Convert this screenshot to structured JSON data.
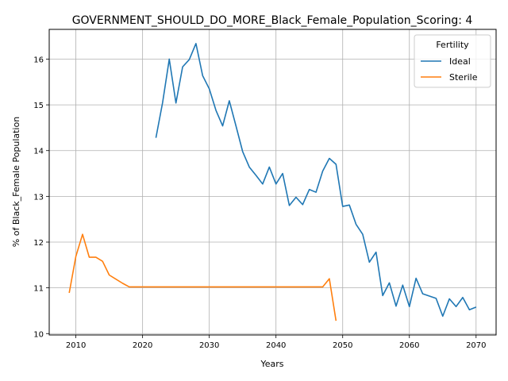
{
  "chart_data": {
    "type": "line",
    "title": "GOVERNMENT_SHOULD_DO_MORE_Black_Female_Population_Scoring: 4",
    "xlabel": "Years",
    "ylabel": "% of Black_Female Population",
    "xlim": [
      2006,
      2073
    ],
    "ylim": [
      9.97,
      16.65
    ],
    "xticks": [
      2010,
      2020,
      2030,
      2040,
      2050,
      2060,
      2070
    ],
    "yticks": [
      10,
      11,
      12,
      13,
      14,
      15,
      16
    ],
    "grid": true,
    "legend": {
      "title": "Fertility",
      "placement": "top-right"
    },
    "series": [
      {
        "name": "Ideal",
        "color": "#1f77b4",
        "x": [
          2022,
          2023,
          2024,
          2025,
          2026,
          2027,
          2028,
          2029,
          2030,
          2031,
          2032,
          2033,
          2034,
          2035,
          2036,
          2037,
          2038,
          2039,
          2040,
          2041,
          2042,
          2043,
          2044,
          2045,
          2046,
          2047,
          2048,
          2049,
          2050,
          2051,
          2052,
          2053,
          2054,
          2055,
          2056,
          2057,
          2058,
          2059,
          2060,
          2061,
          2062,
          2063,
          2064,
          2065,
          2066,
          2067,
          2068,
          2069,
          2070
        ],
        "values": [
          14.28,
          15.05,
          16.0,
          15.04,
          15.83,
          15.99,
          16.34,
          15.64,
          15.35,
          14.88,
          14.54,
          15.09,
          14.54,
          13.98,
          13.64,
          13.46,
          13.27,
          13.64,
          13.27,
          13.5,
          12.8,
          12.98,
          12.82,
          13.15,
          13.09,
          13.55,
          13.83,
          13.7,
          12.78,
          12.81,
          12.39,
          12.17,
          11.56,
          11.78,
          10.83,
          11.11,
          10.6,
          11.06,
          10.59,
          11.21,
          10.87,
          10.82,
          10.77,
          10.38,
          10.76,
          10.59,
          10.79,
          10.52,
          10.58
        ]
      },
      {
        "name": "Sterile",
        "color": "#ff7f0e",
        "x": [
          2009,
          2010,
          2011,
          2012,
          2013,
          2014,
          2015,
          2016,
          2017,
          2018,
          2019,
          2020,
          2021,
          2022,
          2023,
          2024,
          2025,
          2026,
          2027,
          2028,
          2029,
          2030,
          2031,
          2032,
          2033,
          2034,
          2035,
          2036,
          2037,
          2038,
          2039,
          2040,
          2041,
          2042,
          2043,
          2044,
          2045,
          2046,
          2047,
          2048,
          2049
        ],
        "values": [
          10.89,
          11.69,
          12.17,
          11.67,
          11.67,
          11.58,
          11.28,
          11.19,
          11.1,
          11.02,
          11.02,
          11.02,
          11.02,
          11.02,
          11.02,
          11.02,
          11.02,
          11.02,
          11.02,
          11.02,
          11.02,
          11.02,
          11.02,
          11.02,
          11.02,
          11.02,
          11.02,
          11.02,
          11.02,
          11.02,
          11.02,
          11.02,
          11.02,
          11.02,
          11.02,
          11.02,
          11.02,
          11.02,
          11.02,
          11.2,
          10.28
        ]
      }
    ]
  }
}
